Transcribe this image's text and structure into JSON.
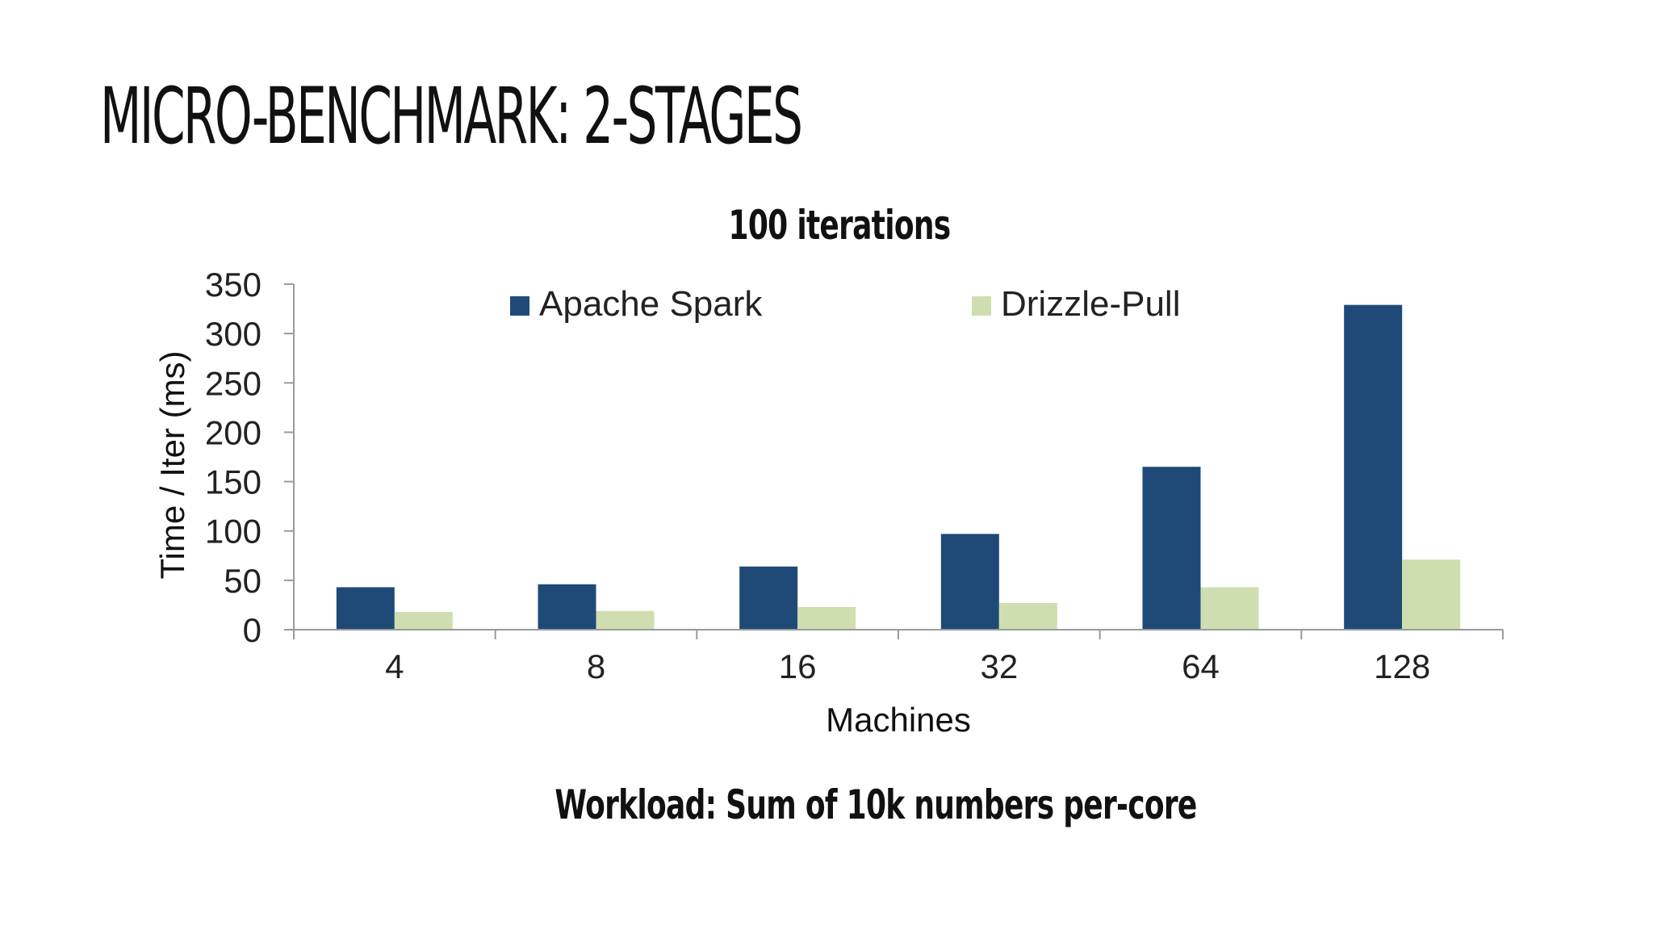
{
  "slide": {
    "title": "MICRO-BENCHMARK: 2-STAGES",
    "footer": "Workload: Sum of 10k numbers per-core"
  },
  "chart_data": {
    "type": "bar",
    "title": "100 iterations",
    "xlabel": "Machines",
    "ylabel": "Time / Iter (ms)",
    "categories": [
      "4",
      "8",
      "16",
      "32",
      "64",
      "128"
    ],
    "ylim": [
      0,
      350
    ],
    "yticks": [
      0,
      50,
      100,
      150,
      200,
      250,
      300,
      350
    ],
    "grid": false,
    "legend_position": "top",
    "series": [
      {
        "name": "Apache Spark",
        "color": "#1f4a78",
        "values": [
          43,
          46,
          64,
          97,
          165,
          329
        ]
      },
      {
        "name": "Drizzle-Pull",
        "color": "#cfdeb0",
        "values": [
          18,
          19,
          23,
          27,
          43,
          71
        ]
      }
    ]
  }
}
